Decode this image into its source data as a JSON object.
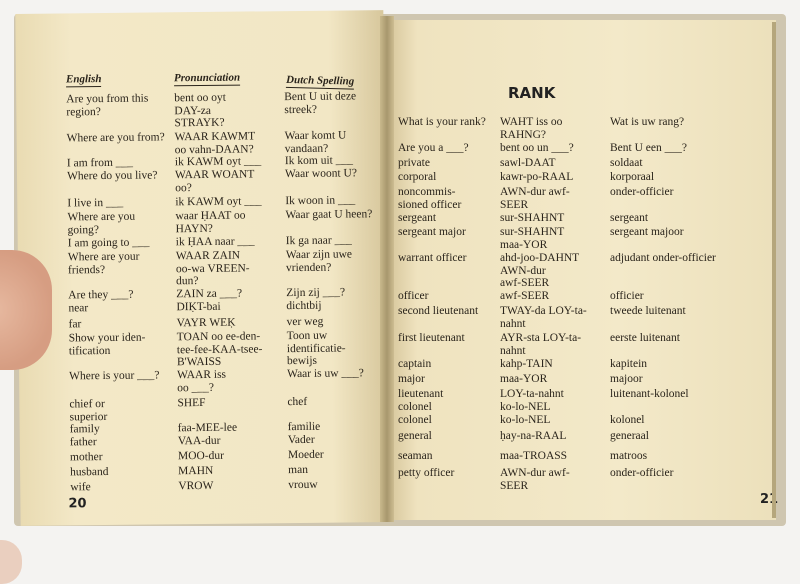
{
  "left_page": {
    "headers": {
      "english": "English",
      "pronunciation": "Pronunciation",
      "dutch": "Dutch Spelling"
    },
    "rows": [
      {
        "en": "Are you from this\n  region?",
        "pr": "bent  oo  oyt\n  DAY-za\n  STRAYK?",
        "nl": "Bent U uit deze streek?"
      },
      {
        "en": "Where are you from?",
        "pr": "WAAR  KAWMT\n  oo  vahn-DAAN?",
        "nl": "Waar komt U vandaan?"
      },
      {
        "en": "I am from ___",
        "pr": "ik  KAWM  oyt ___",
        "nl": "Ik kom uit ___"
      },
      {
        "en": "Where do you live?",
        "pr": "WAAR  WOANT\n  oo?",
        "nl": "Waar woont U?"
      },
      {
        "en": "I live in ___",
        "pr": "ik  KAWM  oyt ___",
        "nl": "Ik woon in ___"
      },
      {
        "en": "Where are you\n  going?",
        "pr": "waar  ḤAAT  oo\n  HAYN?",
        "nl": "Waar gaat U heen?"
      },
      {
        "en": "I am going to ___",
        "pr": "ik  ḤAA  naar ___",
        "nl": "Ik ga naar ___"
      },
      {
        "en": "Where are your\n  friends?",
        "pr": "WAAR  ZAIN\n  oo-wa  VREEN-\n  dun?",
        "nl": "Waar zijn uwe\n  vrienden?"
      },
      {
        "en": "Are they ___?",
        "pr": "ZAIN  za ___?",
        "nl": "Zijn zij ___?"
      },
      {
        "en": "      near",
        "pr": "DIḲT-bai",
        "nl": "dichtbij"
      },
      {
        "en": "      far",
        "pr": "VAYR  WEḲ",
        "nl": "ver weg"
      },
      {
        "en": "Show your iden-\n  tification",
        "pr": "TOAN  oo  ee-den-\n  tee-fee-KAA-tsee-\n  B'WAISS",
        "nl": "Toon uw identificatie-\n  bewijs"
      },
      {
        "en": "Where is your ___?",
        "pr": "WAAR  iss\n  oo ___?",
        "nl": "Waar is uw ___?"
      },
      {
        "en": "      chief or\n        superior",
        "pr": "SHEF",
        "nl": "chef"
      },
      {
        "en": "      family",
        "pr": "faa-MEE-lee",
        "nl": "familie"
      },
      {
        "en": "      father",
        "pr": "VAA-dur",
        "nl": "Vader"
      },
      {
        "en": "      mother",
        "pr": "MOO-dur",
        "nl": "Moeder"
      },
      {
        "en": "      husband",
        "pr": "MAHN",
        "nl": "man"
      },
      {
        "en": "      wife",
        "pr": "VROW",
        "nl": "vrouw"
      }
    ],
    "page_number": "20"
  },
  "right_page": {
    "title": "RANK",
    "rows": [
      {
        "en": "What is your rank?",
        "pr": "WAHT  iss  oo\n  RAHNG?",
        "nl": "Wat is uw rang?"
      },
      {
        "en": "Are you a ___?",
        "pr": "bent  oo  un ___?",
        "nl": "Bent U een ___?"
      },
      {
        "en": "   private",
        "pr": "sawl-DAAT",
        "nl": "soldaat"
      },
      {
        "en": "   corporal",
        "pr": "kawr-po-RAAL",
        "nl": "korporaal"
      },
      {
        "en": "   noncommis-\n     sioned officer",
        "pr": "AWN-dur  awf-\n  SEER",
        "nl": "onder-officier"
      },
      {
        "en": "   sergeant",
        "pr": "sur-SHAHNT",
        "nl": "sergeant"
      },
      {
        "en": "   sergeant major",
        "pr": "sur-SHAHNT\n  maa-YOR",
        "nl": "sergeant majoor"
      },
      {
        "en": "   warrant officer",
        "pr": "ahd-joo-DAHNT\n  AWN-dur\n  awf-SEER",
        "nl": "adjudant onder-officier"
      },
      {
        "en": "   officer",
        "pr": "awf-SEER",
        "nl": "officier"
      },
      {
        "en": "   second lieutenant",
        "pr": "TWAY-da  LOY-ta-\n  nahnt",
        "nl": "tweede luitenant"
      },
      {
        "en": "   first lieutenant",
        "pr": "AYR-sta  LOY-ta-\n  nahnt",
        "nl": "eerste luitenant"
      },
      {
        "en": "   captain",
        "pr": "kahp-TAIN",
        "nl": "kapitein"
      },
      {
        "en": "   major",
        "pr": "maa-YOR",
        "nl": "majoor"
      },
      {
        "en": "   lieutenant\n     colonel",
        "pr": "LOY-ta-nahnt\n  ko-lo-NEL",
        "nl": "luitenant-kolonel"
      },
      {
        "en": "   colonel",
        "pr": "ko-lo-NEL",
        "nl": "kolonel"
      },
      {
        "en": "   general",
        "pr": "ḥay-na-RAAL",
        "nl": "generaal"
      },
      {
        "en": "   seaman",
        "pr": "maa-TROASS",
        "nl": "matroos"
      },
      {
        "en": "   petty officer",
        "pr": "AWN-dur  awf-\n  SEER",
        "nl": "onder-officier"
      }
    ],
    "page_number": "21"
  }
}
